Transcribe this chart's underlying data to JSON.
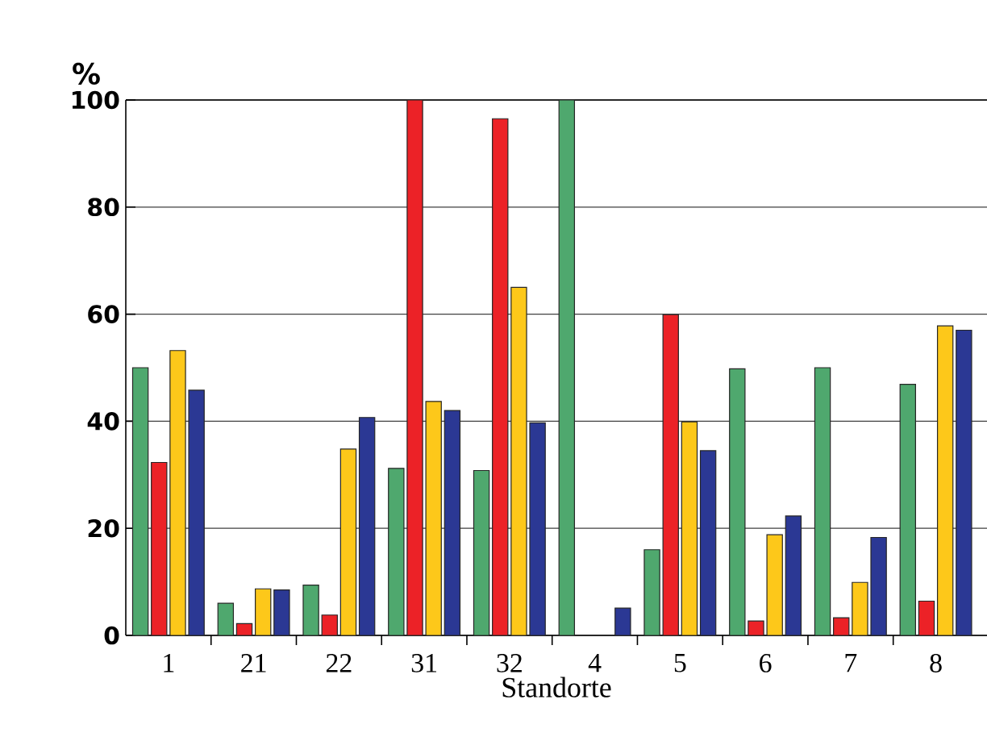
{
  "chart_data": {
    "type": "bar",
    "ylabel": "%",
    "xlabel": "Standorte",
    "categories": [
      "1",
      "21",
      "22",
      "31",
      "32",
      "4",
      "5",
      "6",
      "7",
      "8"
    ],
    "series": [
      {
        "color": "#4fa86e",
        "values": [
          50,
          6,
          9.4,
          31.2,
          30.8,
          100,
          16,
          49.8,
          50,
          46.9
        ]
      },
      {
        "color": "#ec2227",
        "values": [
          32.3,
          2.2,
          3.8,
          100,
          96.5,
          null,
          59.9,
          2.7,
          3.3,
          6.4
        ]
      },
      {
        "color": "#fdc81a",
        "values": [
          53.2,
          8.7,
          34.8,
          43.7,
          65,
          null,
          39.9,
          18.8,
          9.9,
          57.8
        ]
      },
      {
        "color": "#2b3894",
        "values": [
          45.8,
          8.5,
          40.7,
          42,
          39.7,
          5.1,
          34.5,
          22.3,
          18.3,
          57
        ]
      }
    ],
    "ylim": [
      0,
      100
    ],
    "yticks": [
      0,
      20,
      40,
      60,
      80,
      100
    ],
    "grid": "y"
  }
}
